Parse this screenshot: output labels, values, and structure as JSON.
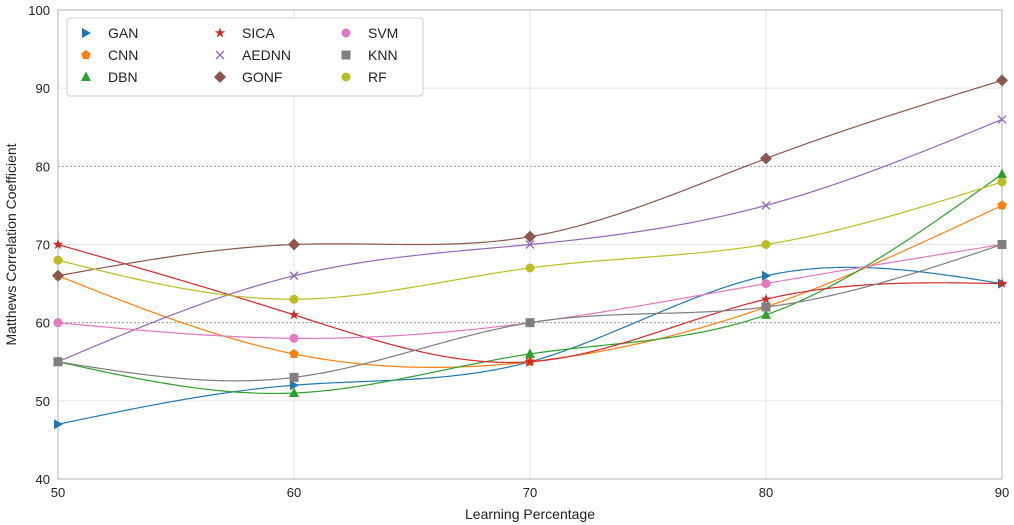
{
  "chart_data": {
    "type": "line",
    "title": "",
    "xlabel": "Learning Percentage",
    "ylabel": "Matthews Correlation Coefficient",
    "x": [
      50,
      60,
      70,
      80,
      90
    ],
    "x_ticks": [
      50,
      60,
      70,
      80,
      90
    ],
    "y_ticks": [
      40,
      50,
      60,
      70,
      80,
      90,
      100
    ],
    "xlim": [
      50,
      90
    ],
    "ylim": [
      40,
      100
    ],
    "grid": true,
    "emphasized_gridlines": [
      60,
      80
    ],
    "legend_position": "top-left",
    "legend_columns": 3,
    "series": [
      {
        "name": "GAN",
        "marker": "triangle-right",
        "color": "#1f77b4",
        "values": [
          47,
          52,
          55,
          66,
          65
        ]
      },
      {
        "name": "CNN",
        "marker": "pentagon",
        "color": "#ff7f0e",
        "values": [
          66,
          56,
          55,
          62,
          75
        ]
      },
      {
        "name": "DBN",
        "marker": "triangle-up",
        "color": "#2ca02c",
        "values": [
          55,
          51,
          56,
          61,
          79
        ]
      },
      {
        "name": "SICA",
        "marker": "star",
        "color": "#d62728",
        "values": [
          70,
          61,
          55,
          63,
          65
        ]
      },
      {
        "name": "AEDNN",
        "marker": "x",
        "color": "#9467bd",
        "values": [
          55,
          66,
          70,
          75,
          86
        ]
      },
      {
        "name": "GONF",
        "marker": "diamond",
        "color": "#8c564b",
        "values": [
          66,
          70,
          71,
          81,
          91
        ]
      },
      {
        "name": "SVM",
        "marker": "circle",
        "color": "#e377c2",
        "values": [
          60,
          58,
          60,
          65,
          70
        ]
      },
      {
        "name": "KNN",
        "marker": "square",
        "color": "#7f7f7f",
        "values": [
          55,
          53,
          60,
          62,
          70
        ]
      },
      {
        "name": "RF",
        "marker": "circle",
        "color": "#bcbd22",
        "values": [
          68,
          63,
          67,
          70,
          78
        ]
      }
    ]
  }
}
